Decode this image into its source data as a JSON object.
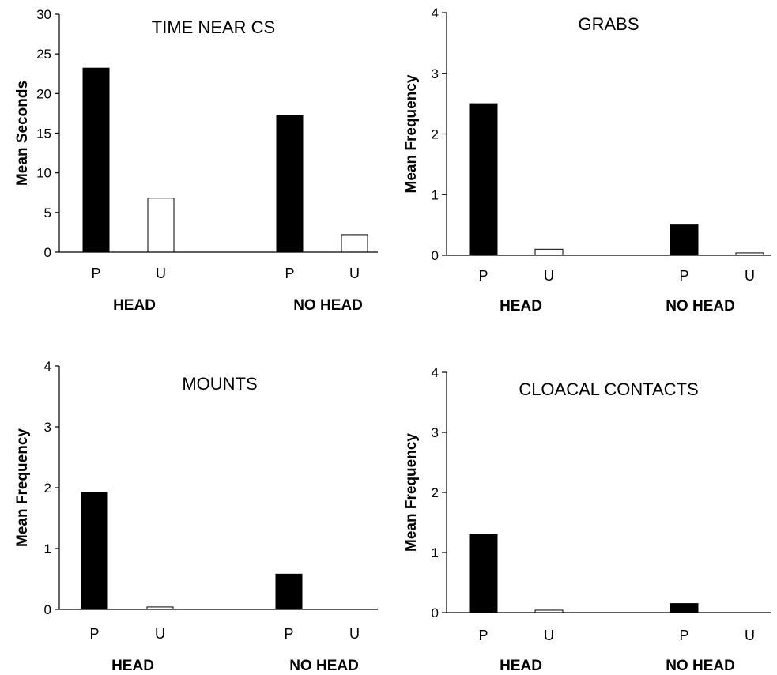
{
  "chart_data": [
    {
      "type": "bar",
      "title": "TIME NEAR CS",
      "ylabel": "Mean Seconds",
      "ylim": [
        0,
        30
      ],
      "yticks": [
        0,
        5,
        10,
        15,
        20,
        25,
        30
      ],
      "categories": [
        "P",
        "U",
        "P",
        "U"
      ],
      "groups": [
        "HEAD",
        "NO HEAD"
      ],
      "bar_fills": [
        "#000000",
        "#ffffff",
        "#000000",
        "#ffffff"
      ],
      "values": [
        23.2,
        6.8,
        17.2,
        2.2
      ],
      "grid": false
    },
    {
      "type": "bar",
      "title": "GRABS",
      "ylabel": "Mean Frequency",
      "ylim": [
        0,
        4
      ],
      "yticks": [
        0,
        1,
        2,
        3,
        4
      ],
      "categories": [
        "P",
        "U",
        "P",
        "U"
      ],
      "groups": [
        "HEAD",
        "NO HEAD"
      ],
      "bar_fills": [
        "#000000",
        "#ffffff",
        "#000000",
        "#ffffff"
      ],
      "values": [
        2.5,
        0.1,
        0.5,
        0.04
      ],
      "grid": false
    },
    {
      "type": "bar",
      "title": "MOUNTS",
      "ylabel": "Mean Frequency",
      "ylim": [
        0,
        4
      ],
      "yticks": [
        0,
        1,
        2,
        3,
        4
      ],
      "categories": [
        "P",
        "U",
        "P",
        "U"
      ],
      "groups": [
        "HEAD",
        "NO HEAD"
      ],
      "bar_fills": [
        "#000000",
        "#ffffff",
        "#000000",
        "#ffffff"
      ],
      "values": [
        1.92,
        0.04,
        0.58,
        0
      ],
      "grid": false
    },
    {
      "type": "bar",
      "title": "CLOACAL CONTACTS",
      "ylabel": "Mean Frequency",
      "ylim": [
        0,
        4
      ],
      "yticks": [
        0,
        1,
        2,
        3,
        4
      ],
      "categories": [
        "P",
        "U",
        "P",
        "U"
      ],
      "groups": [
        "HEAD",
        "NO HEAD"
      ],
      "bar_fills": [
        "#000000",
        "#ffffff",
        "#000000",
        "#ffffff"
      ],
      "values": [
        1.3,
        0.04,
        0.15,
        0
      ],
      "grid": false
    }
  ]
}
